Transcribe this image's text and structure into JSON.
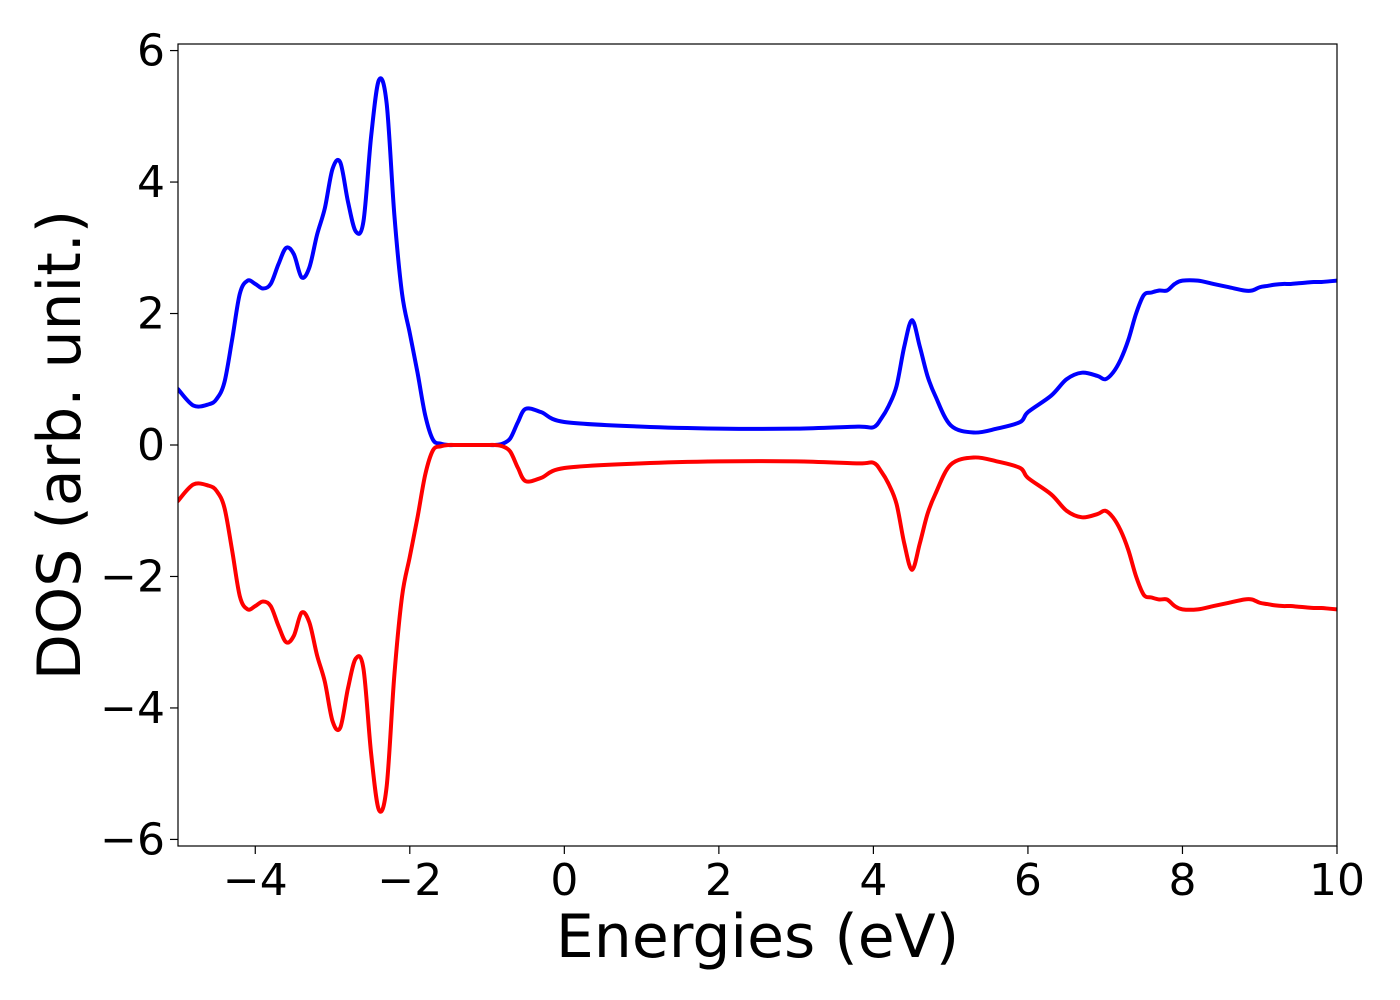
{
  "chart_data": {
    "type": "line",
    "title": "",
    "xlabel": "Energies (eV)",
    "ylabel": "DOS (arb. unit.)",
    "xlim": [
      -5,
      10
    ],
    "ylim": [
      -6.1,
      6.1
    ],
    "xticks": [
      -4,
      -2,
      0,
      2,
      4,
      6,
      8,
      10
    ],
    "yticks": [
      -6,
      -4,
      -2,
      0,
      2,
      4,
      6
    ],
    "xtick_labels": [
      "−4",
      "−2",
      "0",
      "2",
      "4",
      "6",
      "8",
      "10"
    ],
    "ytick_labels": [
      "−6",
      "−4",
      "−2",
      "0",
      "2",
      "4",
      "6"
    ],
    "grid": false,
    "legend": "none",
    "series": [
      {
        "color": "#0000ff",
        "x": [
          -5.0,
          -4.8,
          -4.6,
          -4.5,
          -4.4,
          -4.3,
          -4.2,
          -4.1,
          -4.0,
          -3.9,
          -3.8,
          -3.7,
          -3.6,
          -3.5,
          -3.4,
          -3.3,
          -3.2,
          -3.1,
          -3.0,
          -2.9,
          -2.8,
          -2.7,
          -2.6,
          -2.5,
          -2.4,
          -2.3,
          -2.2,
          -2.1,
          -2.0,
          -1.9,
          -1.8,
          -1.7,
          -1.6,
          -1.5,
          -1.4,
          -1.3,
          -1.2,
          -1.1,
          -1.0,
          -0.9,
          -0.8,
          -0.7,
          -0.6,
          -0.5,
          -0.3,
          0.0,
          1.0,
          2.0,
          3.0,
          3.8,
          4.0,
          4.1,
          4.2,
          4.3,
          4.4,
          4.5,
          4.6,
          4.7,
          4.8,
          5.0,
          5.3,
          5.6,
          5.9,
          6.0,
          6.3,
          6.5,
          6.7,
          6.9,
          7.0,
          7.1,
          7.2,
          7.3,
          7.4,
          7.5,
          7.6,
          7.7,
          7.8,
          7.9,
          8.0,
          8.2,
          8.4,
          8.6,
          8.8,
          8.9,
          9.0,
          9.1,
          9.2,
          9.3,
          9.4,
          9.5,
          9.6,
          9.7,
          9.8,
          9.9,
          10.0
        ],
        "y": [
          0.85,
          0.6,
          0.62,
          0.7,
          0.95,
          1.6,
          2.3,
          2.5,
          2.45,
          2.38,
          2.45,
          2.75,
          3.0,
          2.9,
          2.55,
          2.7,
          3.2,
          3.6,
          4.2,
          4.3,
          3.7,
          3.25,
          3.4,
          4.7,
          5.55,
          5.2,
          3.5,
          2.3,
          1.7,
          1.1,
          0.45,
          0.08,
          0.02,
          0.0,
          0.0,
          0.0,
          0.0,
          0.0,
          0.0,
          0.0,
          0.02,
          0.1,
          0.35,
          0.55,
          0.5,
          0.35,
          0.28,
          0.25,
          0.25,
          0.28,
          0.27,
          0.4,
          0.6,
          0.9,
          1.5,
          1.9,
          1.5,
          1.05,
          0.75,
          0.3,
          0.19,
          0.25,
          0.35,
          0.5,
          0.75,
          1.0,
          1.1,
          1.05,
          1.0,
          1.1,
          1.3,
          1.6,
          2.0,
          2.28,
          2.32,
          2.35,
          2.35,
          2.45,
          2.5,
          2.5,
          2.45,
          2.4,
          2.35,
          2.35,
          2.4,
          2.42,
          2.44,
          2.45,
          2.45,
          2.46,
          2.47,
          2.48,
          2.48,
          2.49,
          2.5
        ],
        "name": ""
      },
      {
        "color": "#ff0000",
        "x": [
          -5.0,
          -4.8,
          -4.6,
          -4.5,
          -4.4,
          -4.3,
          -4.2,
          -4.1,
          -4.0,
          -3.9,
          -3.8,
          -3.7,
          -3.6,
          -3.5,
          -3.4,
          -3.3,
          -3.2,
          -3.1,
          -3.0,
          -2.9,
          -2.8,
          -2.7,
          -2.6,
          -2.5,
          -2.4,
          -2.3,
          -2.2,
          -2.1,
          -2.0,
          -1.9,
          -1.8,
          -1.7,
          -1.6,
          -1.5,
          -1.4,
          -1.3,
          -1.2,
          -1.1,
          -1.0,
          -0.9,
          -0.8,
          -0.7,
          -0.6,
          -0.5,
          -0.3,
          0.0,
          1.0,
          2.0,
          3.0,
          3.8,
          4.0,
          4.1,
          4.2,
          4.3,
          4.4,
          4.5,
          4.6,
          4.7,
          4.8,
          5.0,
          5.3,
          5.6,
          5.9,
          6.0,
          6.3,
          6.5,
          6.7,
          6.9,
          7.0,
          7.1,
          7.2,
          7.3,
          7.4,
          7.5,
          7.6,
          7.7,
          7.8,
          7.9,
          8.0,
          8.2,
          8.4,
          8.6,
          8.8,
          8.9,
          9.0,
          9.1,
          9.2,
          9.3,
          9.4,
          9.5,
          9.6,
          9.7,
          9.8,
          9.9,
          10.0
        ],
        "y": [
          -0.85,
          -0.6,
          -0.62,
          -0.7,
          -0.95,
          -1.6,
          -2.3,
          -2.5,
          -2.45,
          -2.38,
          -2.45,
          -2.75,
          -3.0,
          -2.9,
          -2.55,
          -2.7,
          -3.2,
          -3.6,
          -4.2,
          -4.3,
          -3.7,
          -3.25,
          -3.4,
          -4.7,
          -5.55,
          -5.2,
          -3.5,
          -2.3,
          -1.7,
          -1.1,
          -0.45,
          -0.08,
          -0.02,
          0.0,
          0.0,
          0.0,
          0.0,
          0.0,
          0.0,
          0.0,
          -0.02,
          -0.1,
          -0.35,
          -0.55,
          -0.5,
          -0.35,
          -0.28,
          -0.25,
          -0.25,
          -0.28,
          -0.27,
          -0.4,
          -0.6,
          -0.9,
          -1.5,
          -1.9,
          -1.5,
          -1.05,
          -0.75,
          -0.3,
          -0.19,
          -0.25,
          -0.35,
          -0.5,
          -0.75,
          -1.0,
          -1.1,
          -1.05,
          -1.0,
          -1.1,
          -1.3,
          -1.6,
          -2.0,
          -2.28,
          -2.32,
          -2.35,
          -2.35,
          -2.45,
          -2.5,
          -2.5,
          -2.45,
          -2.4,
          -2.35,
          -2.35,
          -2.4,
          -2.42,
          -2.44,
          -2.45,
          -2.45,
          -2.46,
          -2.47,
          -2.48,
          -2.48,
          -2.49,
          -2.5
        ],
        "name": ""
      }
    ]
  }
}
